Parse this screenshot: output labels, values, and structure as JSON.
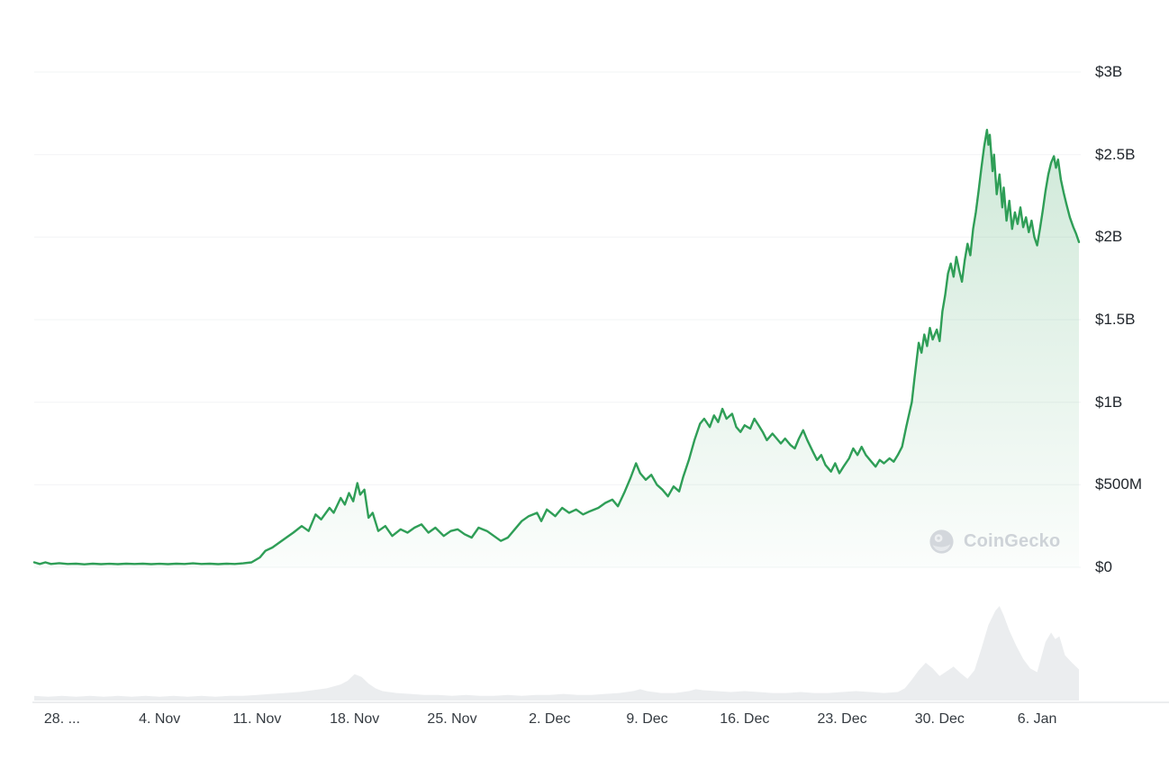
{
  "watermark": {
    "text": "CoinGecko",
    "icon": "coingecko-logo-icon"
  },
  "chart_data": {
    "type": "line",
    "x_ticks": [
      {
        "t": 2,
        "label": "28. ..."
      },
      {
        "t": 9,
        "label": "4. Nov"
      },
      {
        "t": 16,
        "label": "11. Nov"
      },
      {
        "t": 23,
        "label": "18. Nov"
      },
      {
        "t": 30,
        "label": "25. Nov"
      },
      {
        "t": 37,
        "label": "2. Dec"
      },
      {
        "t": 44,
        "label": "9. Dec"
      },
      {
        "t": 51,
        "label": "16. Dec"
      },
      {
        "t": 58,
        "label": "23. Dec"
      },
      {
        "t": 65,
        "label": "30. Dec"
      },
      {
        "t": 72,
        "label": "6. Jan"
      }
    ],
    "y_ticks": [
      {
        "v": 0,
        "label": "$0"
      },
      {
        "v": 0.5,
        "label": "$500M"
      },
      {
        "v": 1,
        "label": "$1B"
      },
      {
        "v": 1.5,
        "label": "$1.5B"
      },
      {
        "v": 2,
        "label": "$2B"
      },
      {
        "v": 2.5,
        "label": "$2.5B"
      },
      {
        "v": 3,
        "label": "$3B"
      }
    ],
    "t_range": [
      0,
      75
    ],
    "y_range": [
      0,
      3
    ],
    "grid": true,
    "legend": false,
    "style": {
      "background": "#ffffff",
      "grid_color": "#f2f4f6",
      "separator_color": "#e5e7ea",
      "fill_top": "rgba(47,158,87,0.26)",
      "fill_bottom": "rgba(47,158,87,0.02)"
    },
    "series": [
      {
        "name": "series-1",
        "color": "#2f9e57",
        "points": [
          [
            0,
            0.03
          ],
          [
            0.4,
            0.02
          ],
          [
            0.8,
            0.03
          ],
          [
            1.2,
            0.02
          ],
          [
            1.8,
            0.025
          ],
          [
            2.4,
            0.02
          ],
          [
            3,
            0.022
          ],
          [
            3.6,
            0.018
          ],
          [
            4.2,
            0.022
          ],
          [
            4.8,
            0.019
          ],
          [
            5.4,
            0.021
          ],
          [
            6,
            0.019
          ],
          [
            6.6,
            0.022
          ],
          [
            7.2,
            0.02
          ],
          [
            7.8,
            0.022
          ],
          [
            8.4,
            0.019
          ],
          [
            9,
            0.021
          ],
          [
            9.6,
            0.019
          ],
          [
            10.2,
            0.022
          ],
          [
            10.8,
            0.02
          ],
          [
            11.4,
            0.024
          ],
          [
            12,
            0.02
          ],
          [
            12.6,
            0.022
          ],
          [
            13.2,
            0.019
          ],
          [
            13.8,
            0.022
          ],
          [
            14.4,
            0.02
          ],
          [
            15,
            0.024
          ],
          [
            15.6,
            0.03
          ],
          [
            16.2,
            0.06
          ],
          [
            16.6,
            0.1
          ],
          [
            17.1,
            0.12
          ],
          [
            17.6,
            0.15
          ],
          [
            18.1,
            0.18
          ],
          [
            18.6,
            0.21
          ],
          [
            19.2,
            0.25
          ],
          [
            19.7,
            0.22
          ],
          [
            20.2,
            0.32
          ],
          [
            20.6,
            0.29
          ],
          [
            21.2,
            0.36
          ],
          [
            21.5,
            0.33
          ],
          [
            22,
            0.42
          ],
          [
            22.3,
            0.38
          ],
          [
            22.6,
            0.45
          ],
          [
            22.9,
            0.4
          ],
          [
            23.2,
            0.51
          ],
          [
            23.4,
            0.44
          ],
          [
            23.7,
            0.47
          ],
          [
            24,
            0.3
          ],
          [
            24.3,
            0.33
          ],
          [
            24.7,
            0.22
          ],
          [
            25.2,
            0.25
          ],
          [
            25.7,
            0.19
          ],
          [
            26.3,
            0.23
          ],
          [
            26.8,
            0.21
          ],
          [
            27.3,
            0.24
          ],
          [
            27.8,
            0.26
          ],
          [
            28.3,
            0.21
          ],
          [
            28.8,
            0.24
          ],
          [
            29.4,
            0.19
          ],
          [
            29.9,
            0.22
          ],
          [
            30.4,
            0.23
          ],
          [
            30.9,
            0.2
          ],
          [
            31.4,
            0.18
          ],
          [
            31.9,
            0.24
          ],
          [
            32.5,
            0.22
          ],
          [
            33,
            0.19
          ],
          [
            33.5,
            0.16
          ],
          [
            34,
            0.18
          ],
          [
            34.5,
            0.23
          ],
          [
            35,
            0.28
          ],
          [
            35.5,
            0.31
          ],
          [
            36.1,
            0.33
          ],
          [
            36.4,
            0.28
          ],
          [
            36.8,
            0.35
          ],
          [
            37.4,
            0.31
          ],
          [
            37.9,
            0.36
          ],
          [
            38.4,
            0.33
          ],
          [
            38.9,
            0.35
          ],
          [
            39.4,
            0.32
          ],
          [
            39.9,
            0.34
          ],
          [
            40.5,
            0.36
          ],
          [
            41,
            0.39
          ],
          [
            41.5,
            0.41
          ],
          [
            41.9,
            0.37
          ],
          [
            42.4,
            0.46
          ],
          [
            42.8,
            0.54
          ],
          [
            43.2,
            0.63
          ],
          [
            43.5,
            0.57
          ],
          [
            43.9,
            0.53
          ],
          [
            44.3,
            0.56
          ],
          [
            44.7,
            0.5
          ],
          [
            45.1,
            0.47
          ],
          [
            45.5,
            0.43
          ],
          [
            45.9,
            0.49
          ],
          [
            46.3,
            0.46
          ],
          [
            46.6,
            0.55
          ],
          [
            47,
            0.65
          ],
          [
            47.4,
            0.77
          ],
          [
            47.8,
            0.87
          ],
          [
            48.1,
            0.9
          ],
          [
            48.5,
            0.85
          ],
          [
            48.8,
            0.92
          ],
          [
            49.1,
            0.88
          ],
          [
            49.4,
            0.96
          ],
          [
            49.7,
            0.9
          ],
          [
            50.1,
            0.93
          ],
          [
            50.4,
            0.85
          ],
          [
            50.7,
            0.82
          ],
          [
            51,
            0.86
          ],
          [
            51.4,
            0.84
          ],
          [
            51.7,
            0.9
          ],
          [
            52,
            0.86
          ],
          [
            52.3,
            0.82
          ],
          [
            52.6,
            0.77
          ],
          [
            53,
            0.81
          ],
          [
            53.3,
            0.78
          ],
          [
            53.6,
            0.75
          ],
          [
            53.9,
            0.78
          ],
          [
            54.3,
            0.74
          ],
          [
            54.6,
            0.72
          ],
          [
            54.9,
            0.78
          ],
          [
            55.2,
            0.83
          ],
          [
            55.5,
            0.77
          ],
          [
            55.9,
            0.7
          ],
          [
            56.2,
            0.65
          ],
          [
            56.5,
            0.68
          ],
          [
            56.8,
            0.62
          ],
          [
            57.2,
            0.58
          ],
          [
            57.5,
            0.63
          ],
          [
            57.8,
            0.57
          ],
          [
            58.1,
            0.61
          ],
          [
            58.5,
            0.66
          ],
          [
            58.8,
            0.72
          ],
          [
            59.1,
            0.68
          ],
          [
            59.4,
            0.73
          ],
          [
            59.7,
            0.68
          ],
          [
            60.1,
            0.64
          ],
          [
            60.4,
            0.61
          ],
          [
            60.7,
            0.65
          ],
          [
            61,
            0.63
          ],
          [
            61.4,
            0.66
          ],
          [
            61.7,
            0.64
          ],
          [
            62,
            0.68
          ],
          [
            62.3,
            0.73
          ],
          [
            62.6,
            0.85
          ],
          [
            63,
            1
          ],
          [
            63.2,
            1.15
          ],
          [
            63.5,
            1.36
          ],
          [
            63.7,
            1.3
          ],
          [
            63.9,
            1.41
          ],
          [
            64.1,
            1.34
          ],
          [
            64.3,
            1.45
          ],
          [
            64.5,
            1.38
          ],
          [
            64.8,
            1.44
          ],
          [
            65,
            1.37
          ],
          [
            65.2,
            1.55
          ],
          [
            65.4,
            1.65
          ],
          [
            65.6,
            1.78
          ],
          [
            65.8,
            1.84
          ],
          [
            66,
            1.76
          ],
          [
            66.2,
            1.88
          ],
          [
            66.4,
            1.8
          ],
          [
            66.6,
            1.73
          ],
          [
            66.8,
            1.86
          ],
          [
            67,
            1.96
          ],
          [
            67.2,
            1.89
          ],
          [
            67.4,
            2.05
          ],
          [
            67.6,
            2.15
          ],
          [
            67.8,
            2.28
          ],
          [
            68,
            2.42
          ],
          [
            68.2,
            2.55
          ],
          [
            68.4,
            2.65
          ],
          [
            68.5,
            2.56
          ],
          [
            68.6,
            2.62
          ],
          [
            68.8,
            2.4
          ],
          [
            68.9,
            2.5
          ],
          [
            69.1,
            2.26
          ],
          [
            69.3,
            2.38
          ],
          [
            69.5,
            2.18
          ],
          [
            69.6,
            2.3
          ],
          [
            69.8,
            2.1
          ],
          [
            70,
            2.22
          ],
          [
            70.2,
            2.05
          ],
          [
            70.4,
            2.15
          ],
          [
            70.6,
            2.08
          ],
          [
            70.8,
            2.18
          ],
          [
            71,
            2.06
          ],
          [
            71.2,
            2.12
          ],
          [
            71.4,
            2.03
          ],
          [
            71.6,
            2.1
          ],
          [
            71.8,
            2
          ],
          [
            72,
            1.95
          ],
          [
            72.2,
            2.05
          ],
          [
            72.4,
            2.16
          ],
          [
            72.6,
            2.28
          ],
          [
            72.8,
            2.38
          ],
          [
            73,
            2.45
          ],
          [
            73.2,
            2.49
          ],
          [
            73.35,
            2.42
          ],
          [
            73.5,
            2.47
          ],
          [
            73.7,
            2.35
          ],
          [
            73.9,
            2.27
          ],
          [
            74.1,
            2.2
          ],
          [
            74.35,
            2.12
          ],
          [
            74.6,
            2.06
          ],
          [
            74.8,
            2.02
          ],
          [
            75,
            1.97
          ]
        ]
      }
    ],
    "volume": {
      "name": "volume-mini",
      "color": "#ebedef",
      "scale": "relative-0-1",
      "points": [
        [
          0,
          0.05
        ],
        [
          1,
          0.04
        ],
        [
          2,
          0.05
        ],
        [
          3,
          0.04
        ],
        [
          4,
          0.05
        ],
        [
          5,
          0.04
        ],
        [
          6,
          0.05
        ],
        [
          7,
          0.04
        ],
        [
          8,
          0.05
        ],
        [
          9,
          0.04
        ],
        [
          10,
          0.05
        ],
        [
          11,
          0.04
        ],
        [
          12,
          0.05
        ],
        [
          13,
          0.04
        ],
        [
          14,
          0.05
        ],
        [
          15,
          0.05
        ],
        [
          16,
          0.06
        ],
        [
          17,
          0.07
        ],
        [
          18,
          0.08
        ],
        [
          19,
          0.09
        ],
        [
          20,
          0.11
        ],
        [
          21,
          0.13
        ],
        [
          22,
          0.17
        ],
        [
          22.5,
          0.21
        ],
        [
          23,
          0.28
        ],
        [
          23.5,
          0.25
        ],
        [
          24,
          0.18
        ],
        [
          24.5,
          0.13
        ],
        [
          25,
          0.1
        ],
        [
          26,
          0.08
        ],
        [
          27,
          0.07
        ],
        [
          28,
          0.06
        ],
        [
          29,
          0.06
        ],
        [
          30,
          0.05
        ],
        [
          31,
          0.06
        ],
        [
          32,
          0.05
        ],
        [
          33,
          0.05
        ],
        [
          34,
          0.06
        ],
        [
          35,
          0.05
        ],
        [
          36,
          0.06
        ],
        [
          37,
          0.06
        ],
        [
          38,
          0.07
        ],
        [
          39,
          0.06
        ],
        [
          40,
          0.06
        ],
        [
          41,
          0.07
        ],
        [
          42,
          0.08
        ],
        [
          43,
          0.1
        ],
        [
          43.5,
          0.12
        ],
        [
          44,
          0.1
        ],
        [
          45,
          0.08
        ],
        [
          46,
          0.08
        ],
        [
          47,
          0.1
        ],
        [
          47.5,
          0.12
        ],
        [
          48,
          0.11
        ],
        [
          49,
          0.1
        ],
        [
          50,
          0.09
        ],
        [
          51,
          0.1
        ],
        [
          52,
          0.09
        ],
        [
          53,
          0.08
        ],
        [
          54,
          0.08
        ],
        [
          55,
          0.09
        ],
        [
          56,
          0.08
        ],
        [
          57,
          0.08
        ],
        [
          58,
          0.09
        ],
        [
          59,
          0.1
        ],
        [
          60,
          0.09
        ],
        [
          61,
          0.08
        ],
        [
          62,
          0.09
        ],
        [
          62.5,
          0.13
        ],
        [
          63,
          0.22
        ],
        [
          63.5,
          0.32
        ],
        [
          64,
          0.4
        ],
        [
          64.5,
          0.34
        ],
        [
          65,
          0.26
        ],
        [
          65.5,
          0.31
        ],
        [
          66,
          0.36
        ],
        [
          66.5,
          0.29
        ],
        [
          67,
          0.23
        ],
        [
          67.5,
          0.32
        ],
        [
          68,
          0.55
        ],
        [
          68.5,
          0.8
        ],
        [
          69,
          0.95
        ],
        [
          69.3,
          1
        ],
        [
          69.6,
          0.9
        ],
        [
          70,
          0.74
        ],
        [
          70.5,
          0.58
        ],
        [
          71,
          0.44
        ],
        [
          71.5,
          0.34
        ],
        [
          72,
          0.3
        ],
        [
          72.3,
          0.46
        ],
        [
          72.6,
          0.62
        ],
        [
          73,
          0.72
        ],
        [
          73.3,
          0.65
        ],
        [
          73.6,
          0.68
        ],
        [
          74,
          0.48
        ],
        [
          74.5,
          0.4
        ],
        [
          75,
          0.33
        ]
      ]
    }
  }
}
